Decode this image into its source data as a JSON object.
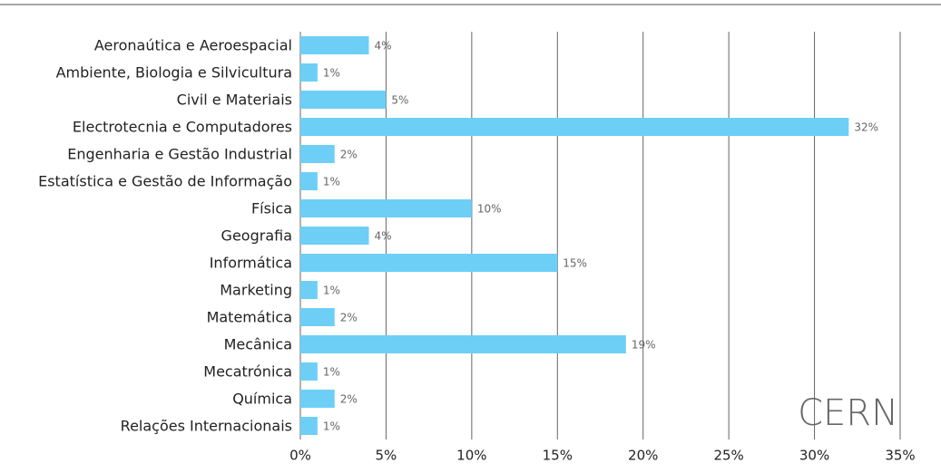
{
  "chart_data": {
    "type": "barh",
    "categories": [
      "Aeronaútica e Aeroespacial",
      "Ambiente, Biologia e Silvicultura",
      "Civil e Materiais",
      "Electrotecnia e Computadores",
      "Engenharia e Gestão Industrial",
      "Estatística e Gestão de Informação",
      "Física",
      "Geografia",
      "Informática",
      "Marketing",
      "Matemática",
      "Mecânica",
      "Mecatrónica",
      "Química",
      "Relações Internacionais"
    ],
    "values": [
      4,
      1,
      5,
      32,
      2,
      1,
      10,
      4,
      15,
      1,
      2,
      19,
      1,
      2,
      1
    ],
    "value_labels": [
      "4%",
      "1%",
      "5%",
      "32%",
      "2%",
      "1%",
      "10%",
      "4%",
      "15%",
      "1%",
      "2%",
      "19%",
      "1%",
      "2%",
      "1%"
    ],
    "color": "#6dcff6",
    "xlim": [
      0,
      35
    ],
    "xticks": [
      {
        "value": 0,
        "label": "0%"
      },
      {
        "value": 5,
        "label": "5%"
      },
      {
        "value": 10,
        "label": "10%"
      },
      {
        "value": 15,
        "label": "15%"
      },
      {
        "value": 20,
        "label": "20%"
      },
      {
        "value": 25,
        "label": "25%"
      },
      {
        "value": 30,
        "label": "30%"
      },
      {
        "value": 35,
        "label": "35%"
      }
    ],
    "grid": true,
    "annotation": "CERN"
  }
}
